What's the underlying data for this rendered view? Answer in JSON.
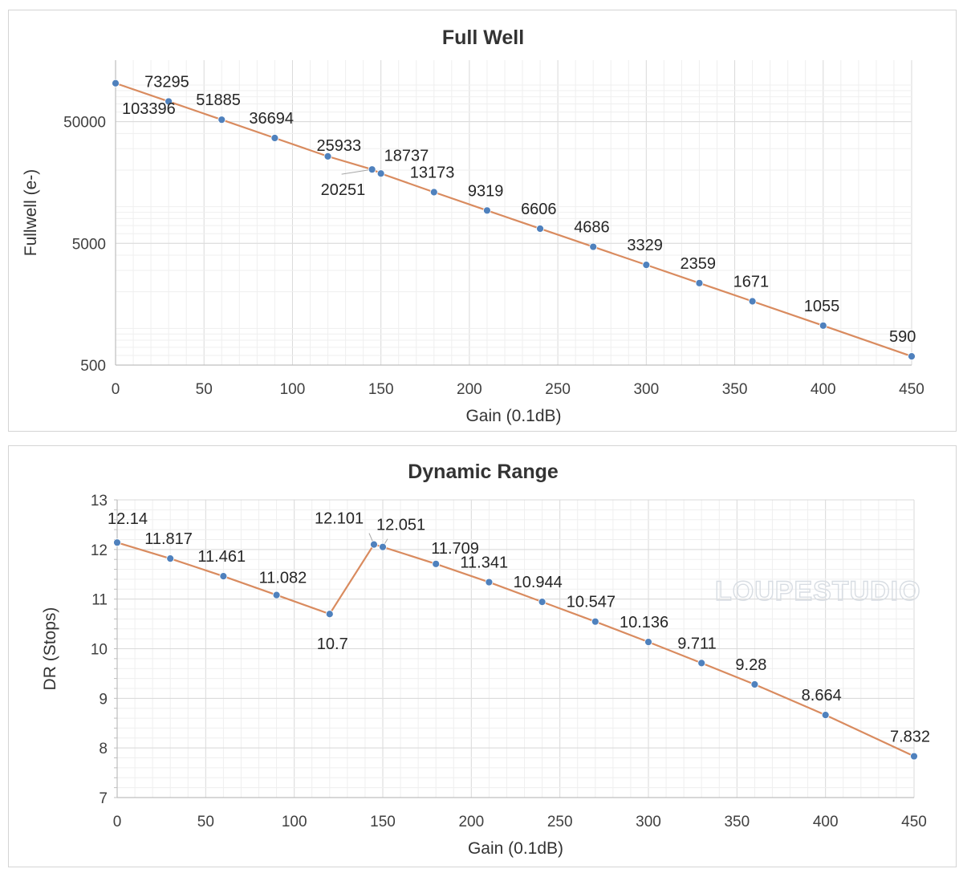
{
  "colors": {
    "line": "#d98b5f",
    "marker": "#4f81bd",
    "major_grid": "#d9d9d9",
    "minor_grid": "#efefef",
    "axis": "#bfbfbf"
  },
  "watermark": "LOUPESTUDIO",
  "chart_data": [
    {
      "type": "line",
      "title": "Full Well",
      "xlabel": "Gain (0.1dB)",
      "ylabel": "Fullwell (e-)",
      "yscale": "log",
      "xlim": [
        0,
        450
      ],
      "ylim": [
        500,
        160000
      ],
      "x_ticks": [
        0,
        50,
        100,
        150,
        200,
        250,
        300,
        350,
        400,
        450
      ],
      "x_tick_labels": [
        "0",
        "50",
        "100",
        "150",
        "200",
        "250",
        "300",
        "350",
        "400",
        "450"
      ],
      "y_ticks": [
        500,
        5000,
        50000
      ],
      "y_tick_labels": [
        "500",
        "5000",
        "50000"
      ],
      "grid": true,
      "x": [
        0,
        30,
        60,
        90,
        120,
        145,
        150,
        180,
        210,
        240,
        270,
        300,
        330,
        360,
        400,
        450
      ],
      "values": [
        103396,
        73295,
        51885,
        36694,
        25933,
        20251,
        18737,
        13173,
        9319,
        6606,
        4686,
        3329,
        2359,
        1671,
        1055,
        590
      ],
      "labels": [
        "103396",
        "73295",
        "51885",
        "36694",
        "25933",
        "20251",
        "18737",
        "13173",
        "9319",
        "6606",
        "4686",
        "3329",
        "2359",
        "1671",
        "1055",
        "590"
      ]
    },
    {
      "type": "line",
      "title": "Dynamic Range",
      "xlabel": "Gain (0.1dB)",
      "ylabel": "DR (Stops)",
      "yscale": "linear",
      "xlim": [
        0,
        450
      ],
      "ylim": [
        7,
        13
      ],
      "x_ticks": [
        0,
        50,
        100,
        150,
        200,
        250,
        300,
        350,
        400,
        450
      ],
      "x_tick_labels": [
        "0",
        "50",
        "100",
        "150",
        "200",
        "250",
        "300",
        "350",
        "400",
        "450"
      ],
      "y_ticks": [
        7,
        8,
        9,
        10,
        11,
        12,
        13
      ],
      "y_tick_labels": [
        "7",
        "8",
        "9",
        "10",
        "11",
        "12",
        "13"
      ],
      "grid": true,
      "x": [
        0,
        30,
        60,
        90,
        120,
        145,
        150,
        180,
        210,
        240,
        270,
        300,
        330,
        360,
        400,
        450
      ],
      "values": [
        12.14,
        11.817,
        11.461,
        11.082,
        10.7,
        12.101,
        12.051,
        11.709,
        11.341,
        10.944,
        10.547,
        10.136,
        9.711,
        9.28,
        8.664,
        7.832
      ],
      "labels": [
        "12.14",
        "11.817",
        "11.461",
        "11.082",
        "10.7",
        "12.101",
        "12.051",
        "11.709",
        "11.341",
        "10.944",
        "10.547",
        "10.136",
        "9.711",
        "9.28",
        "8.664",
        "7.832"
      ]
    }
  ]
}
